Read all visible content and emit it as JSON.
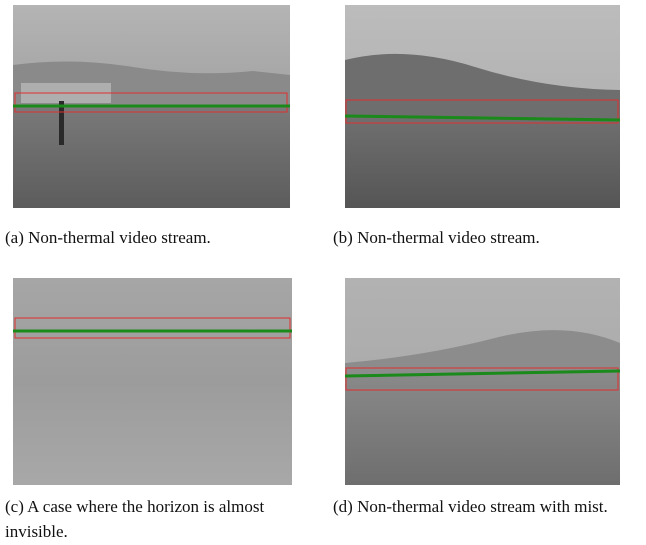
{
  "figures": [
    {
      "caption": "(a) Non-thermal video stream."
    },
    {
      "caption": "(b) Non-thermal video stream."
    },
    {
      "caption": "(c) A case where the horizon is almost invisible."
    },
    {
      "caption": "(d) Non-thermal video stream with mist."
    }
  ]
}
